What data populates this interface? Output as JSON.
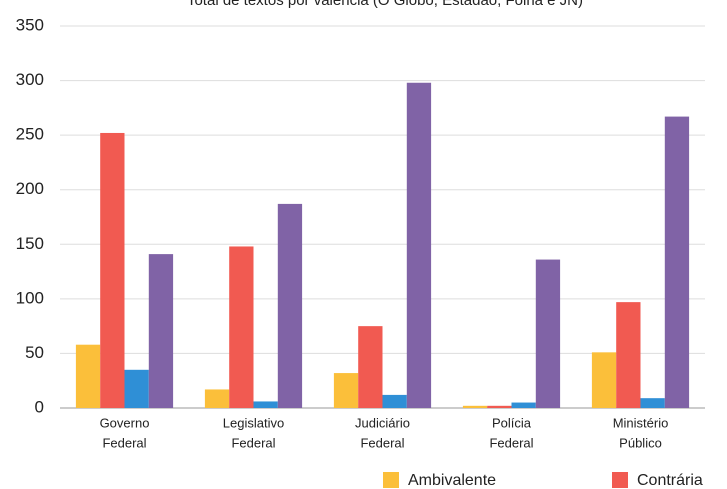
{
  "chart_data": {
    "type": "bar",
    "title": "Total de textos por valência (O Globo, Estadão, Folha e JN)",
    "categories": [
      [
        "Governo",
        "Federal"
      ],
      [
        "Legislativo",
        "Federal"
      ],
      [
        "Judiciário",
        "Federal"
      ],
      [
        "Polícia",
        "Federal"
      ],
      [
        "Ministério",
        "Público"
      ]
    ],
    "series": [
      {
        "name": "Ambivalente",
        "color": "#fbbf3a",
        "values": [
          58,
          17,
          32,
          2,
          51
        ]
      },
      {
        "name": "Contrária",
        "color": "#f15a51",
        "values": [
          252,
          148,
          75,
          2,
          97
        ]
      },
      {
        "color": "#2f8fd6",
        "values": [
          35,
          6,
          12,
          5,
          9
        ]
      },
      {
        "color": "#8063a6",
        "values": [
          141,
          187,
          298,
          136,
          267
        ]
      }
    ],
    "ylim": [
      0,
      350
    ],
    "yticks": [
      0,
      50,
      100,
      150,
      200,
      250,
      300,
      350
    ],
    "grid": true
  }
}
